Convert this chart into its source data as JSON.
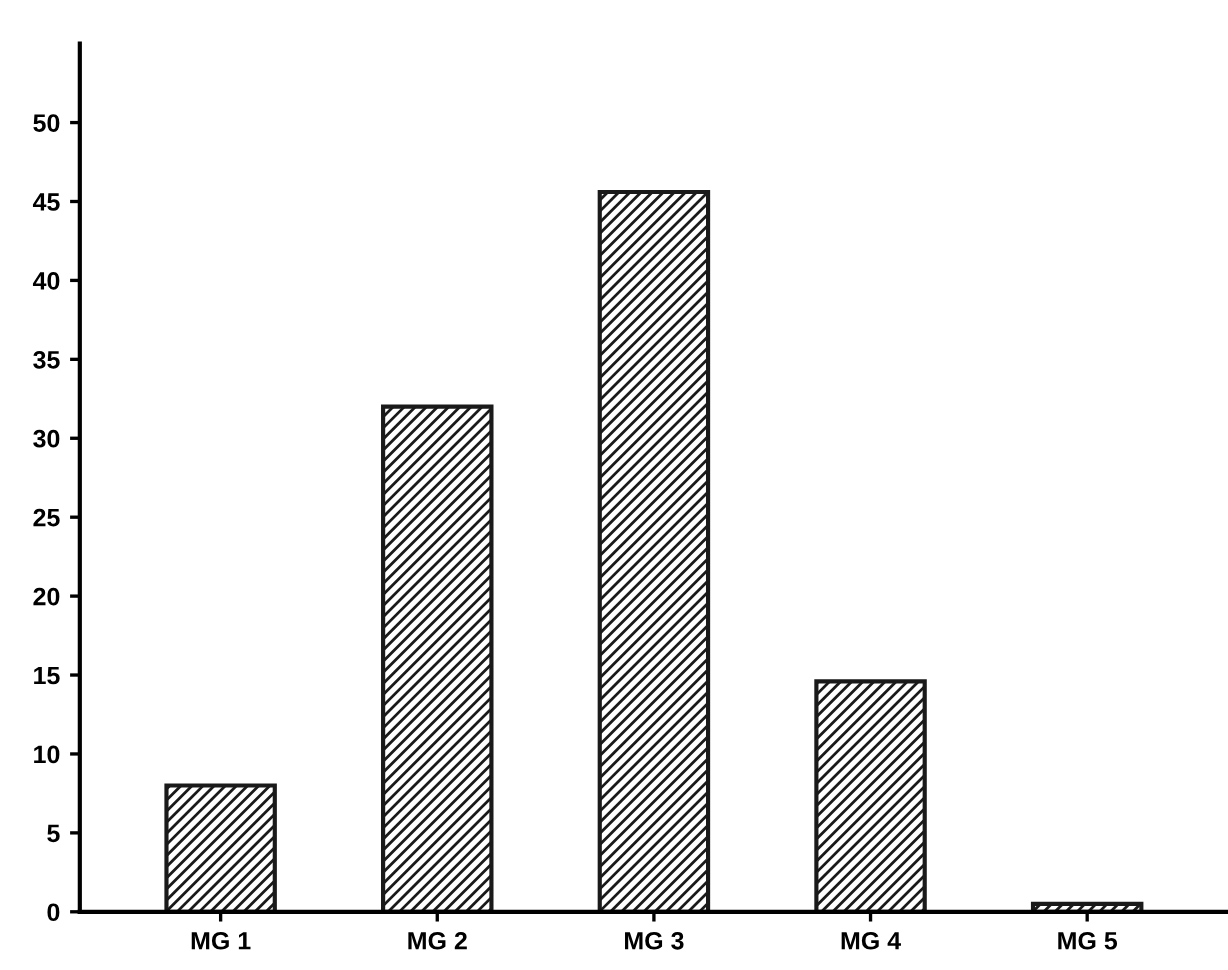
{
  "chart_data": {
    "type": "bar",
    "categories": [
      "MG 1",
      "MG 2",
      "MG 3",
      "MG 4",
      "MG 5"
    ],
    "values": [
      8,
      32,
      45.6,
      14.6,
      0.5
    ],
    "color": "#1a1a1a",
    "ylim": [
      0,
      55
    ],
    "yticks": [
      0,
      5,
      10,
      15,
      20,
      25,
      30,
      35,
      40,
      45,
      50
    ],
    "grid": false
  }
}
